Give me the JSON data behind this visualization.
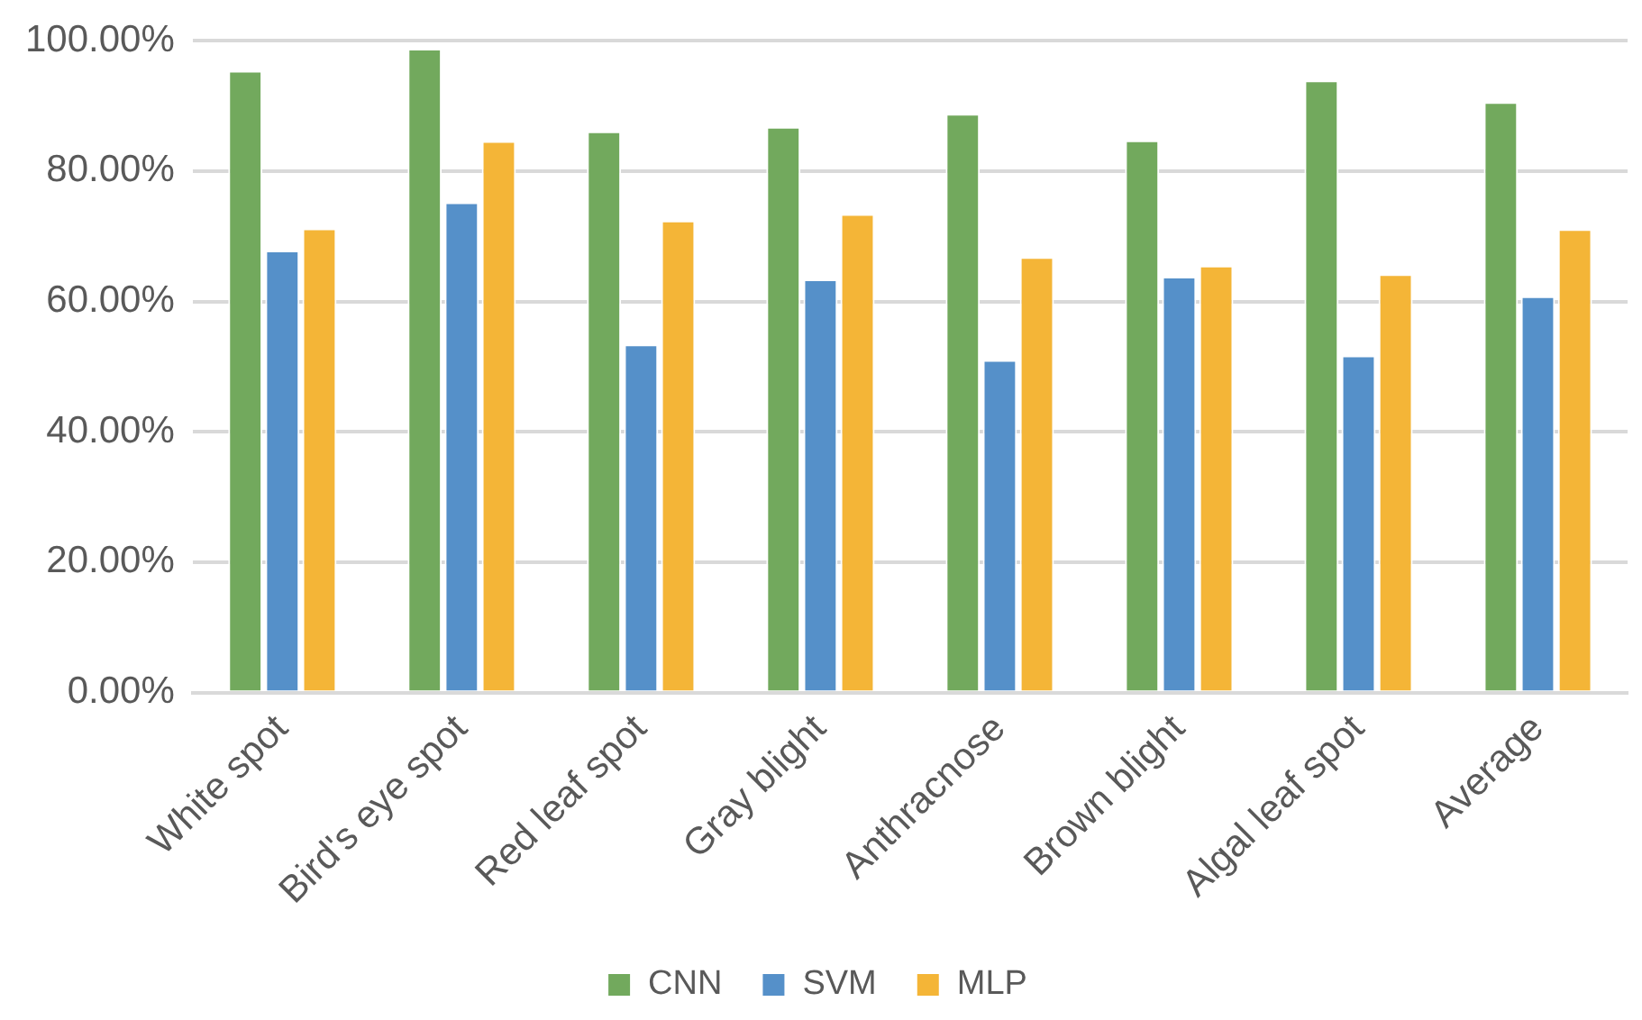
{
  "chart_data": {
    "type": "bar",
    "categories": [
      "White spot",
      "Bird's eye spot",
      "Red leaf spot",
      "Gray blight",
      "Anthracnose",
      "Brown blight",
      "Algal leaf spot",
      "Average"
    ],
    "series": [
      {
        "name": "CNN",
        "color": "#72a95d",
        "values": [
          95.4,
          98.8,
          86.1,
          86.8,
          88.8,
          84.7,
          93.9,
          90.6
        ]
      },
      {
        "name": "SVM",
        "color": "#5590c9",
        "values": [
          67.8,
          75.2,
          53.4,
          63.4,
          51.0,
          63.8,
          51.7,
          60.8
        ]
      },
      {
        "name": "MLP",
        "color": "#f4b537",
        "values": [
          71.2,
          84.6,
          72.4,
          73.4,
          66.8,
          65.5,
          64.2,
          71.1
        ]
      }
    ],
    "ylim": [
      0,
      100
    ],
    "yticks": [
      {
        "value": 0,
        "label": "0.00%"
      },
      {
        "value": 20,
        "label": "20.00%"
      },
      {
        "value": 40,
        "label": "40.00%"
      },
      {
        "value": 60,
        "label": "60.00%"
      },
      {
        "value": 80,
        "label": "80.00%"
      },
      {
        "value": 100,
        "label": "100.00%"
      }
    ],
    "grid": "y",
    "legend": "bottom"
  }
}
